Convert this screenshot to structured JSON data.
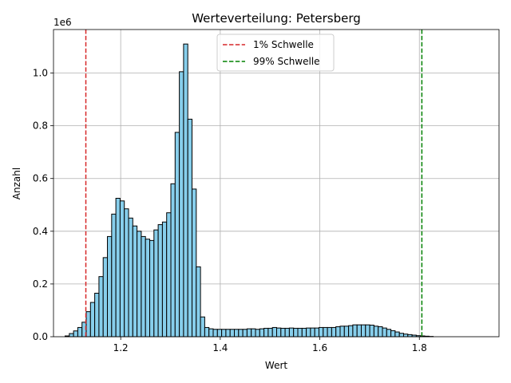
{
  "chart_data": {
    "type": "bar",
    "title": "Werteverteilung: Petersberg",
    "xlabel": "Wert",
    "ylabel": "Anzahl",
    "y_scale_label": "1e6",
    "xlim": [
      1.065,
      1.96
    ],
    "ylim": [
      0,
      1165000
    ],
    "x_ticks": [
      1.2,
      1.4,
      1.6,
      1.8
    ],
    "x_tick_labels": [
      "1.2",
      "1.4",
      "1.6",
      "1.8"
    ],
    "y_ticks": [
      0,
      200000,
      400000,
      600000,
      800000,
      1000000
    ],
    "y_tick_labels": [
      "0.0",
      "0.2",
      "0.4",
      "0.6",
      "0.8",
      "1.0"
    ],
    "grid": true,
    "bar_color": "#87CEEB",
    "bar_edge_color": "#000000",
    "bin_start": 1.0883,
    "bin_width": 0.0085,
    "counts": [
      3000,
      12000,
      22000,
      35000,
      55000,
      95000,
      130000,
      165000,
      228000,
      300000,
      380000,
      465000,
      525000,
      515000,
      485000,
      450000,
      420000,
      400000,
      380000,
      370000,
      365000,
      405000,
      425000,
      435000,
      470000,
      580000,
      775000,
      1005000,
      1110000,
      825000,
      560000,
      265000,
      75000,
      35000,
      30000,
      28000,
      28000,
      28000,
      28000,
      28000,
      28000,
      28000,
      28000,
      30000,
      30000,
      28000,
      30000,
      32000,
      32000,
      35000,
      33000,
      32000,
      32000,
      33000,
      32000,
      32000,
      32000,
      33000,
      33000,
      33000,
      35000,
      35000,
      35000,
      35000,
      38000,
      40000,
      40000,
      42000,
      45000,
      45000,
      45000,
      45000,
      44000,
      40000,
      38000,
      33000,
      28000,
      23000,
      18000,
      13000,
      10000,
      8000,
      6000,
      4000,
      3000,
      2000,
      1000
    ],
    "thresholds": [
      {
        "name": "1% Schwelle",
        "x": 1.13,
        "color": "#d62728",
        "style": "dashed"
      },
      {
        "name": "99% Schwelle",
        "x": 1.805,
        "color": "#008000",
        "style": "dashed"
      }
    ],
    "legend_placement": "upper-center"
  }
}
